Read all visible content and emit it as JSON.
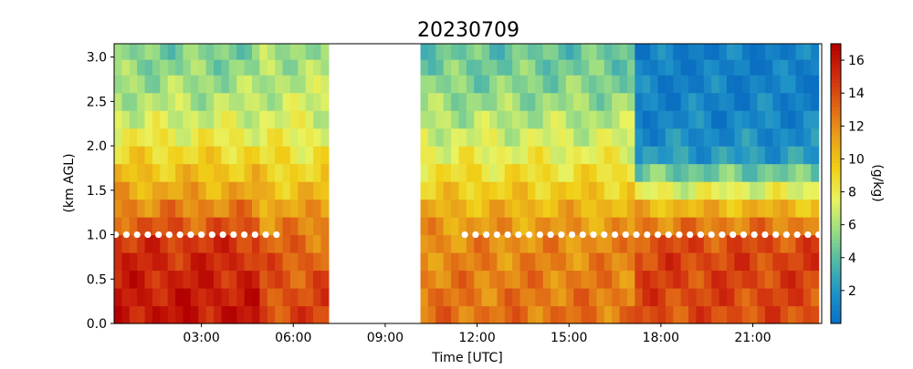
{
  "chart_data": {
    "type": "heatmap",
    "title": "20230709",
    "xlabel": "Time [UTC]",
    "ylabel": "(km AGL)",
    "colorbar_label": "(g/kg)",
    "xlim_hours": [
      0.15,
      23.25
    ],
    "ylim": [
      0,
      3.15
    ],
    "xticks": [
      {
        "hour": 3,
        "label": "03:00"
      },
      {
        "hour": 6,
        "label": "06:00"
      },
      {
        "hour": 9,
        "label": "09:00"
      },
      {
        "hour": 12,
        "label": "12:00"
      },
      {
        "hour": 15,
        "label": "15:00"
      },
      {
        "hour": 18,
        "label": "18:00"
      },
      {
        "hour": 21,
        "label": "21:00"
      }
    ],
    "yticks": [
      {
        "value": 0.0,
        "label": "0.0"
      },
      {
        "value": 0.5,
        "label": "0.5"
      },
      {
        "value": 1.0,
        "label": "1.0"
      },
      {
        "value": 1.5,
        "label": "1.5"
      },
      {
        "value": 2.0,
        "label": "2.0"
      },
      {
        "value": 2.5,
        "label": "2.5"
      },
      {
        "value": 3.0,
        "label": "3.0"
      }
    ],
    "colorbar": {
      "range": [
        0,
        17
      ],
      "ticks": [
        {
          "value": 2,
          "label": "2"
        },
        {
          "value": 4,
          "label": "4"
        },
        {
          "value": 6,
          "label": "6"
        },
        {
          "value": 8,
          "label": "8"
        },
        {
          "value": 10,
          "label": "10"
        },
        {
          "value": 12,
          "label": "12"
        },
        {
          "value": 14,
          "label": "14"
        },
        {
          "value": 16,
          "label": "16"
        }
      ],
      "colormap": [
        "#0b6fc2",
        "#1f93c8",
        "#52b8a6",
        "#9bdd83",
        "#e9f35f",
        "#f1cf17",
        "#e9a11a",
        "#e06414",
        "#cf2a0e",
        "#b30000"
      ]
    },
    "data_gap_hours": [
      7.2,
      10.1
    ],
    "time_step_hours": 0.25,
    "height_levels_km": [
      0.1,
      0.3,
      0.5,
      0.7,
      0.9,
      1.1,
      1.3,
      1.5,
      1.7,
      1.9,
      2.1,
      2.3,
      2.5,
      2.7,
      2.9,
      3.05
    ],
    "periods": [
      {
        "start": 0.15,
        "end": 5.0,
        "profile_gkg": [
          16,
          15.8,
          15.5,
          15.2,
          14.8,
          13.6,
          12.3,
          11.0,
          10.0,
          9.1,
          8.0,
          7.0,
          6.3,
          5.8,
          5.3,
          5.0
        ]
      },
      {
        "start": 5.0,
        "end": 7.2,
        "profile_gkg": [
          14.2,
          14.0,
          13.8,
          13.5,
          13.0,
          12.2,
          11.2,
          10.2,
          9.3,
          8.6,
          7.8,
          7.2,
          6.8,
          6.4,
          6.1,
          5.8
        ]
      },
      {
        "start": 10.1,
        "end": 17.2,
        "profile_gkg": [
          12.8,
          12.6,
          12.4,
          12.2,
          12.0,
          11.5,
          10.6,
          9.6,
          8.7,
          7.8,
          7.0,
          6.3,
          5.6,
          5.1,
          4.7,
          4.4
        ]
      },
      {
        "start": 17.2,
        "end": 23.25,
        "profile_gkg": [
          14.0,
          14.2,
          14.3,
          14.3,
          14.0,
          12.5,
          10.5,
          7.5,
          4.6,
          2.2,
          1.5,
          1.2,
          1.0,
          0.9,
          0.8,
          0.8
        ]
      }
    ],
    "marker_series": {
      "name": "",
      "height_km": 1.0,
      "segments": [
        {
          "start": 0.2,
          "end": 5.5,
          "step": 0.35
        },
        {
          "start": 11.6,
          "end": 23.2,
          "step": 0.35
        }
      ],
      "color": "#ffffff"
    }
  }
}
